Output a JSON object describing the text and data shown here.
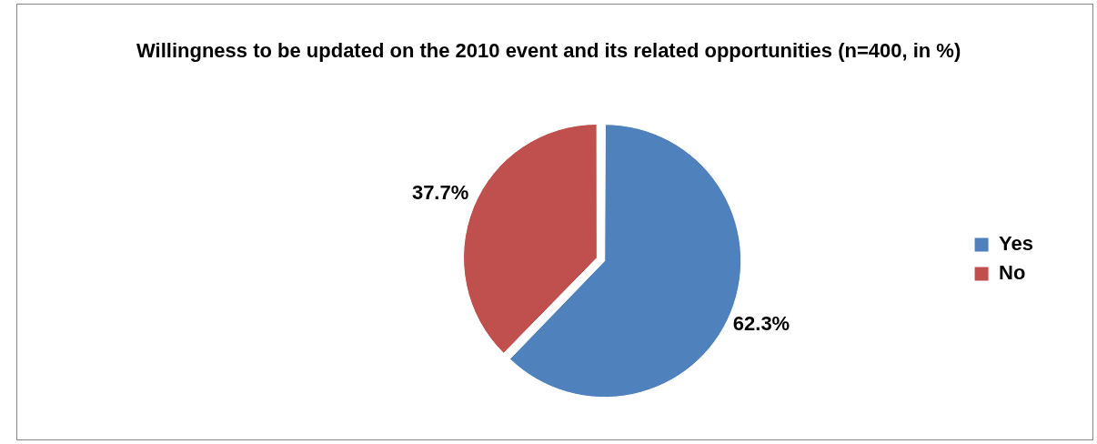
{
  "chart_data": {
    "type": "pie",
    "title": "Willingness to be updated on the 2010 event and its related opportunities (n=400, in %)",
    "categories": [
      "Yes",
      "No"
    ],
    "values": [
      62.3,
      37.7
    ],
    "colors": [
      "#4f81bd",
      "#c0504d"
    ],
    "value_labels": [
      "62.3%",
      "37.7%"
    ],
    "legend": "right"
  }
}
